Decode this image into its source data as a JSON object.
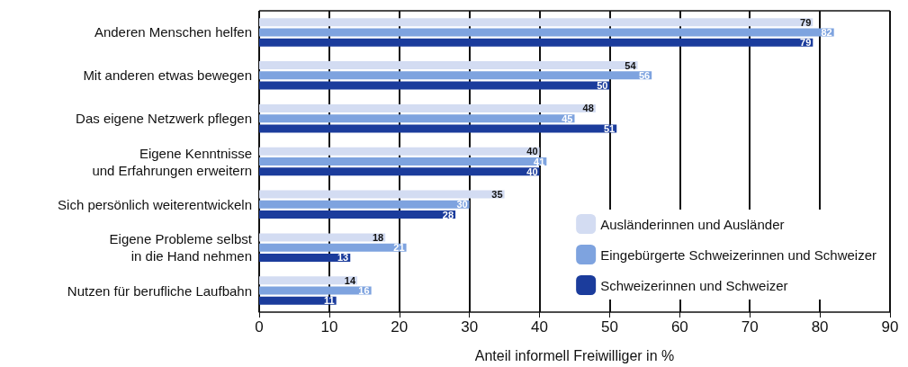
{
  "chart_data": {
    "type": "bar",
    "orientation": "horizontal",
    "xlabel": "Anteil informell Freiwilliger in %",
    "categories": [
      "Anderen Menschen helfen",
      "Mit anderen etwas bewegen",
      "Das eigene Netzwerk pflegen",
      "Eigene Kenntnisse\nund Erfahrungen erweitern",
      "Sich persönlich weiterentwickeln",
      "Eigene Probleme selbst\nin die Hand nehmen",
      "Nutzen für berufliche Laufbahn"
    ],
    "series": [
      {
        "name": "Ausländerinnen und Ausländer",
        "color": "#d3dcf2",
        "values": [
          79,
          54,
          48,
          40,
          35,
          18,
          14
        ]
      },
      {
        "name": "Eingebürgerte Schweizerinnen und Schweizer",
        "color": "#7ea3df",
        "values": [
          82,
          56,
          45,
          41,
          30,
          21,
          16
        ]
      },
      {
        "name": "Schweizerinnen und Schweizer",
        "color": "#1b3c9c",
        "values": [
          79,
          50,
          51,
          40,
          28,
          13,
          11
        ]
      }
    ],
    "xlim": [
      0,
      90
    ],
    "xticks": [
      0,
      10,
      20,
      30,
      40,
      50,
      60,
      70,
      80,
      90
    ],
    "grid": "x",
    "legend": "bottom right",
    "data_labels": true
  }
}
